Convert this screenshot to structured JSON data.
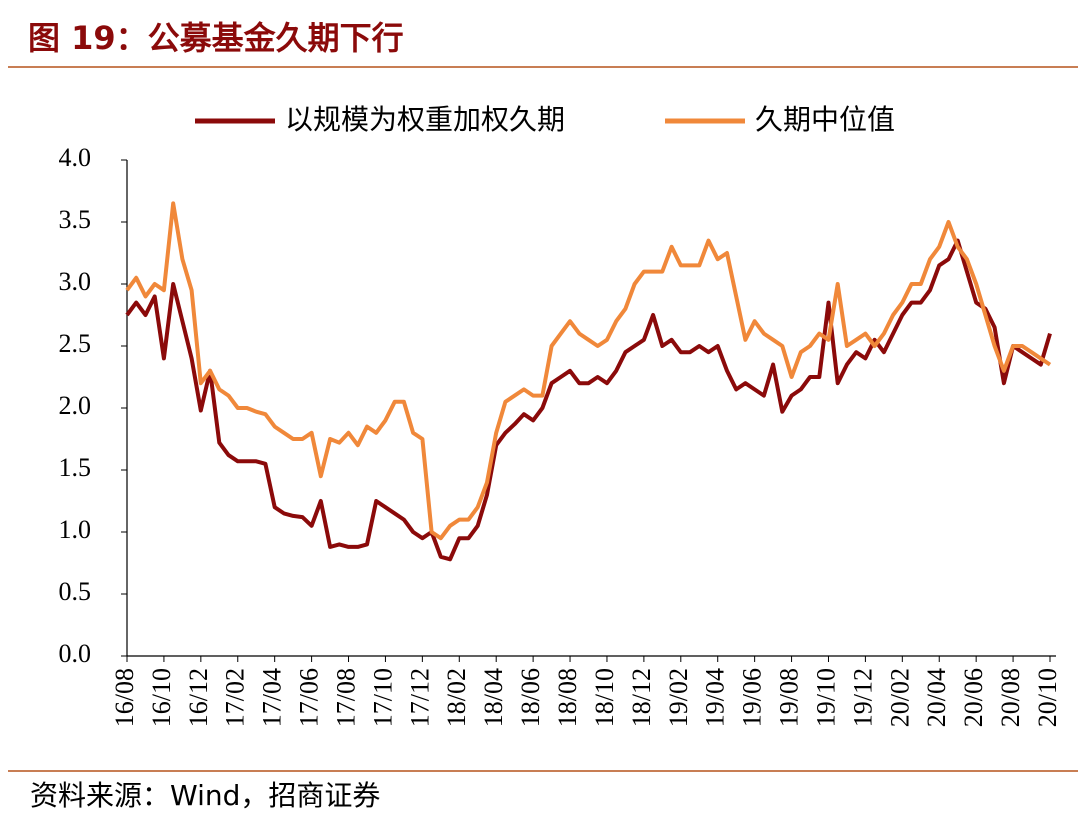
{
  "chart_data": {
    "type": "line",
    "title": "图 19：公募基金久期下行",
    "source": "资料来源：Wind，招商证券",
    "categories": [
      "16/08",
      null,
      null,
      null,
      "16/10",
      null,
      null,
      null,
      "16/12",
      null,
      null,
      null,
      "17/02",
      null,
      null,
      null,
      "17/04",
      null,
      null,
      null,
      "17/06",
      null,
      null,
      null,
      "17/08",
      null,
      null,
      null,
      "17/10",
      null,
      null,
      null,
      "17/12",
      null,
      null,
      null,
      "18/02",
      null,
      null,
      null,
      "18/04",
      null,
      null,
      null,
      "18/06",
      null,
      null,
      null,
      "18/08",
      null,
      null,
      null,
      "18/10",
      null,
      null,
      null,
      "18/12",
      null,
      null,
      null,
      "19/02",
      null,
      null,
      null,
      "19/04",
      null,
      null,
      null,
      "19/06",
      null,
      null,
      null,
      "19/08",
      null,
      null,
      null,
      "19/10",
      null,
      null,
      null,
      "19/12",
      null,
      null,
      null,
      "20/02",
      null,
      null,
      null,
      "20/04",
      null,
      null,
      null,
      "20/06",
      null,
      null,
      null,
      "20/08",
      null,
      null,
      null,
      "20/10"
    ],
    "series": [
      {
        "name": "以规模为权重加权久期",
        "color": "#8b0a0a",
        "values": [
          2.75,
          2.85,
          2.75,
          2.9,
          2.4,
          3.0,
          2.7,
          2.4,
          1.98,
          2.3,
          1.72,
          1.62,
          1.57,
          1.57,
          1.57,
          1.55,
          1.2,
          1.15,
          1.13,
          1.12,
          1.05,
          1.25,
          0.88,
          0.9,
          0.88,
          0.88,
          0.9,
          1.25,
          1.2,
          1.15,
          1.1,
          1.0,
          0.95,
          1.0,
          0.8,
          0.78,
          0.95,
          0.95,
          1.05,
          1.3,
          1.7,
          1.8,
          1.87,
          1.95,
          1.9,
          2.0,
          2.2,
          2.25,
          2.3,
          2.2,
          2.2,
          2.25,
          2.2,
          2.3,
          2.45,
          2.5,
          2.55,
          2.75,
          2.5,
          2.55,
          2.45,
          2.45,
          2.5,
          2.45,
          2.5,
          2.3,
          2.15,
          2.2,
          2.15,
          2.1,
          2.35,
          1.97,
          2.1,
          2.15,
          2.25,
          2.25,
          2.85,
          2.2,
          2.35,
          2.45,
          2.4,
          2.55,
          2.45,
          2.6,
          2.75,
          2.85,
          2.85,
          2.95,
          3.15,
          3.2,
          3.35,
          3.1,
          2.85,
          2.8,
          2.65,
          2.2,
          2.5,
          2.45,
          2.4,
          2.35,
          2.6
        ]
      },
      {
        "name": "久期中位值",
        "color": "#f0883a",
        "values": [
          2.95,
          3.05,
          2.9,
          3.0,
          2.95,
          3.65,
          3.2,
          2.95,
          2.2,
          2.3,
          2.15,
          2.1,
          2.0,
          2.0,
          1.97,
          1.95,
          1.85,
          1.8,
          1.75,
          1.75,
          1.8,
          1.45,
          1.75,
          1.72,
          1.8,
          1.7,
          1.85,
          1.8,
          1.9,
          2.05,
          2.05,
          1.8,
          1.75,
          1.0,
          0.95,
          1.05,
          1.1,
          1.1,
          1.2,
          1.4,
          1.8,
          2.05,
          2.1,
          2.15,
          2.1,
          2.1,
          2.5,
          2.6,
          2.7,
          2.6,
          2.55,
          2.5,
          2.55,
          2.7,
          2.8,
          3.0,
          3.1,
          3.1,
          3.1,
          3.3,
          3.15,
          3.15,
          3.15,
          3.35,
          3.2,
          3.25,
          2.9,
          2.55,
          2.7,
          2.6,
          2.55,
          2.5,
          2.25,
          2.45,
          2.5,
          2.6,
          2.55,
          3.0,
          2.5,
          2.55,
          2.6,
          2.5,
          2.6,
          2.75,
          2.85,
          3.0,
          3.0,
          3.2,
          3.3,
          3.5,
          3.3,
          3.2,
          3.0,
          2.75,
          2.5,
          2.3,
          2.5,
          2.5,
          2.45,
          2.4,
          2.35
        ]
      }
    ],
    "ylim": [
      0,
      4
    ],
    "yticks": [
      {
        "value": 0,
        "label": "0.0"
      },
      0.5,
      {
        "value": 1,
        "label": "1.0"
      },
      1.5,
      {
        "value": 2,
        "label": "2.0"
      },
      2.5,
      {
        "value": 3,
        "label": "3.0"
      },
      3.5,
      {
        "value": 4,
        "label": "4.0"
      }
    ],
    "legend": "top"
  }
}
